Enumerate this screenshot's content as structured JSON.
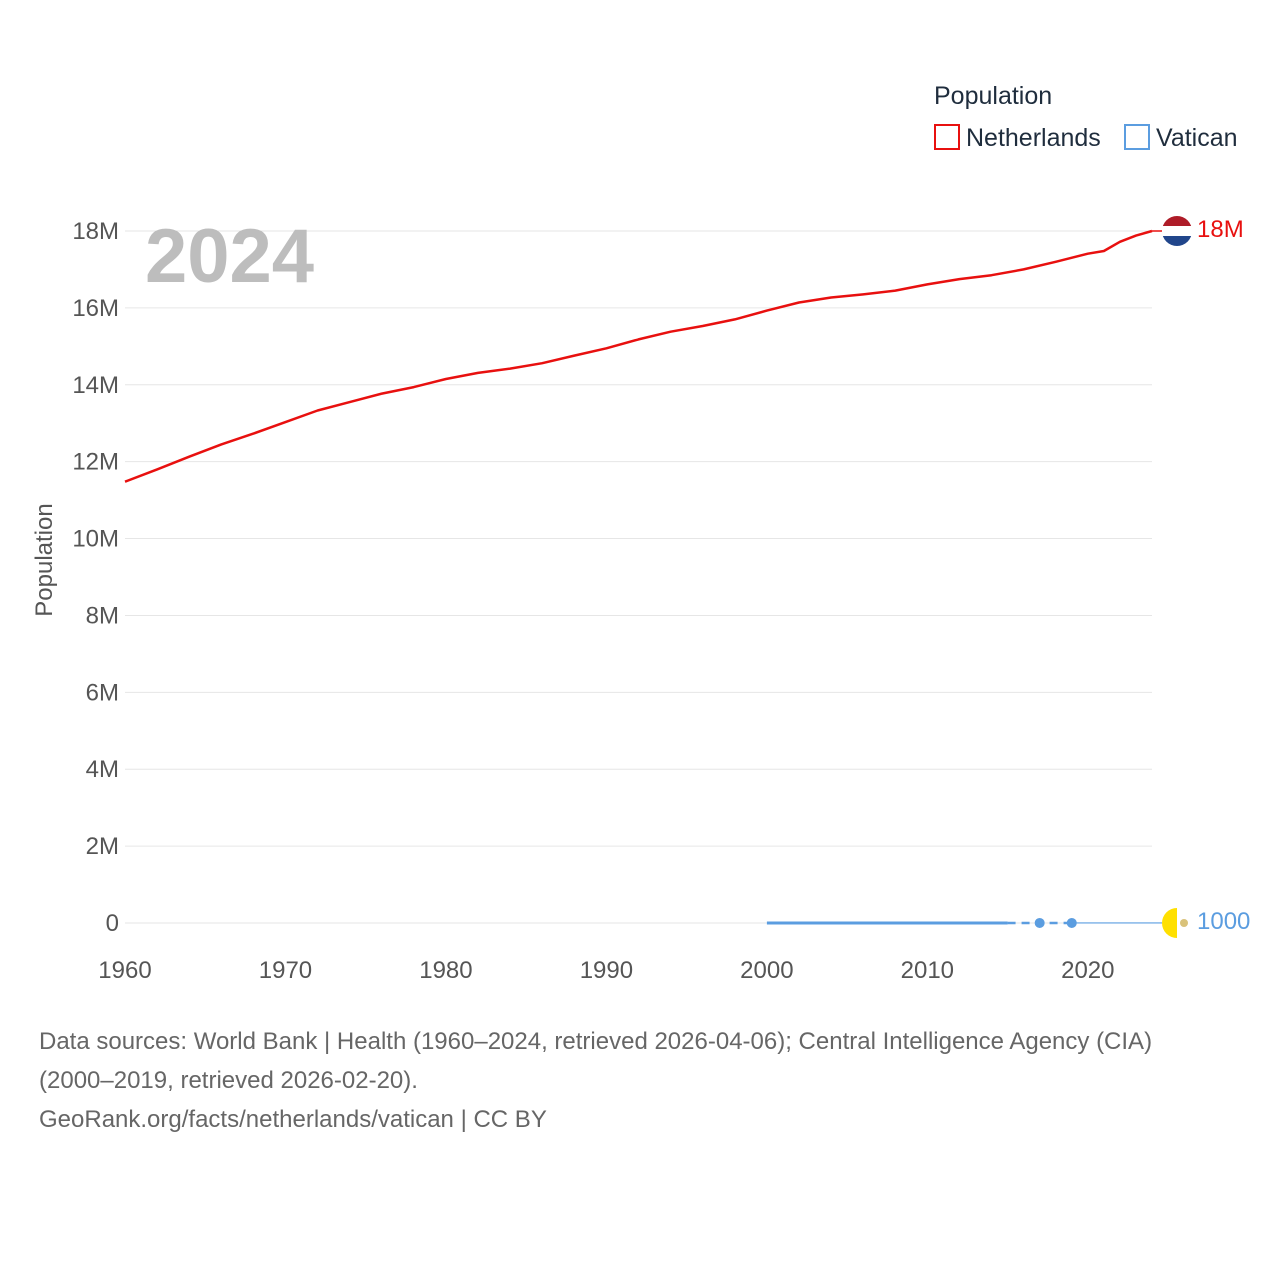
{
  "chart_data": {
    "type": "line",
    "legend_title": "Population",
    "legend_position": "top-right",
    "ylabel": "Population",
    "xlabel": "",
    "year_label": "2024",
    "xlim": [
      1960,
      2024
    ],
    "ylim": [
      0,
      18000000
    ],
    "x_ticks": [
      "1960",
      "1970",
      "1980",
      "1990",
      "2000",
      "2010",
      "2020"
    ],
    "y_ticks": [
      "0",
      "2M",
      "4M",
      "6M",
      "8M",
      "10M",
      "12M",
      "14M",
      "16M",
      "18M"
    ],
    "grid": true,
    "series": [
      {
        "name": "Netherlands",
        "color": "#e8100f",
        "end_label": "18M",
        "flag": "netherlands-flag",
        "x": [
          1960,
          1962,
          1964,
          1966,
          1968,
          1970,
          1972,
          1974,
          1976,
          1978,
          1980,
          1982,
          1984,
          1986,
          1988,
          1990,
          1992,
          1994,
          1996,
          1998,
          2000,
          2002,
          2004,
          2006,
          2008,
          2010,
          2012,
          2014,
          2016,
          2018,
          2020,
          2021,
          2022,
          2023,
          2024
        ],
        "values": [
          11480000,
          11800000,
          12130000,
          12450000,
          12730000,
          13030000,
          13330000,
          13550000,
          13770000,
          13940000,
          14150000,
          14310000,
          14420000,
          14560000,
          14760000,
          14950000,
          15180000,
          15380000,
          15530000,
          15700000,
          15930000,
          16140000,
          16270000,
          16350000,
          16450000,
          16610000,
          16750000,
          16850000,
          17000000,
          17200000,
          17410000,
          17480000,
          17720000,
          17880000,
          18000000
        ]
      },
      {
        "name": "Vatican",
        "color": "#5b9de0",
        "end_label": "1000",
        "flag": "vatican-flag",
        "x": [
          2000,
          2005,
          2010,
          2015,
          2017,
          2019,
          2024
        ],
        "values": [
          890,
          900,
          830,
          840,
          1000,
          1000,
          1000
        ]
      }
    ]
  },
  "footer": {
    "sources_line1": "Data sources: World Bank | Health (1960–2024, retrieved 2026-04-06); Central Intelligence Agency (CIA)",
    "sources_line2": "(2000–2019, retrieved 2026-02-20).",
    "credit": "GeoRank.org/facts/netherlands/vatican | CC BY"
  }
}
